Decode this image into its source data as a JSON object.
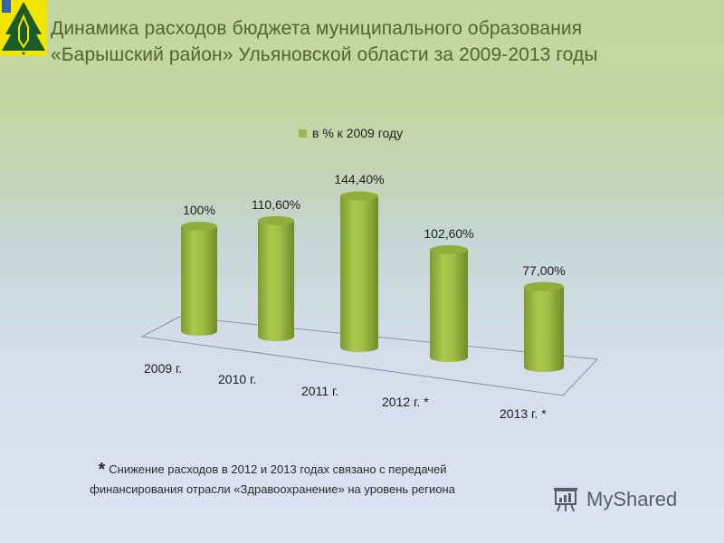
{
  "logo": {
    "name": "district-emblem",
    "colors": {
      "background": "#f2e600",
      "tree": "#1d5a2a",
      "flag": "#3a62a8"
    }
  },
  "title": {
    "line1": "Динамика  расходов бюджета муниципального образования",
    "line2": "«Барышский район» Ульяновской области  за 2009-2013 годы"
  },
  "legend": {
    "label": "в % к 2009 году",
    "color": "#99bb4c"
  },
  "chart_data": {
    "type": "bar",
    "subtype": "3d-cylinder",
    "title": "Динамика  расходов бюджета муниципального образования «Барышский район» Ульяновской области  за 2009-2013 годы",
    "categories": [
      "2009 г.",
      "2010 г.",
      "2011 г.",
      "2012 г. *",
      "2013 г. *"
    ],
    "series": [
      {
        "name": "в % к 2009 году",
        "values": [
          100,
          110.6,
          144.4,
          102.6,
          77.0
        ],
        "color": "#99bb4c"
      }
    ],
    "data_labels": [
      "100%",
      "110,60%",
      "144,40%",
      "102,60%",
      "77,00%"
    ],
    "xlabel": "",
    "ylabel": "",
    "ylim": [
      0,
      160
    ],
    "grid": false,
    "legend_position": "top"
  },
  "footnote": {
    "star": "*",
    "line1": "Снижение расходов в 2012 и 2013 годах связано с передачей",
    "line2": "финансирования  отрасли «Здравоохранение»  на уровень региона"
  },
  "watermark": {
    "icon": "presentation-board-icon",
    "text": "MyShared"
  }
}
